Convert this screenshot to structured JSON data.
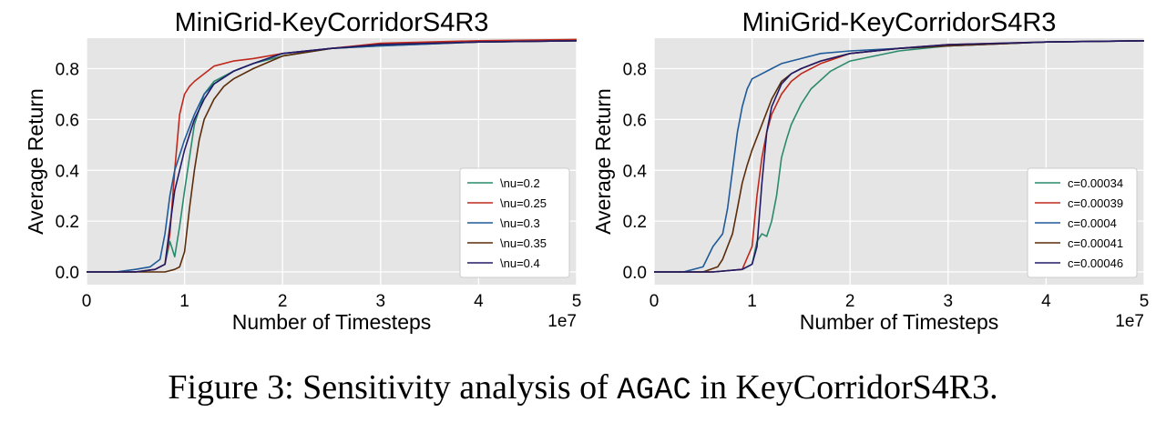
{
  "chart_data": [
    {
      "type": "line",
      "title": "MiniGrid-KeyCorridorS4R3",
      "xlabel": "Number of Timesteps",
      "ylabel": "Average Return",
      "x_multiplier_label": "1e7",
      "xlim": [
        0,
        5
      ],
      "ylim": [
        -0.05,
        0.92
      ],
      "xticks": [
        0,
        1,
        2,
        3,
        4,
        5
      ],
      "yticks": [
        0.0,
        0.2,
        0.4,
        0.6,
        0.8
      ],
      "ytick_labels": [
        "0.0",
        "0.2",
        "0.4",
        "0.6",
        "0.8"
      ],
      "grid": true,
      "legend_position": "lower-right",
      "series": [
        {
          "name": "\\nu=0.2",
          "color": "#2a8a6c",
          "x": [
            0,
            0.5,
            0.7,
            0.8,
            0.85,
            0.9,
            0.95,
            1.0,
            1.05,
            1.1,
            1.2,
            1.3,
            1.5,
            1.7,
            2.0,
            2.5,
            3.0,
            4.0,
            5.0
          ],
          "y": [
            0,
            0,
            0.01,
            0.03,
            0.12,
            0.06,
            0.18,
            0.32,
            0.45,
            0.58,
            0.7,
            0.75,
            0.79,
            0.82,
            0.85,
            0.88,
            0.89,
            0.905,
            0.91
          ]
        },
        {
          "name": "\\nu=0.25",
          "color": "#c0281c",
          "x": [
            0,
            0.5,
            0.7,
            0.8,
            0.85,
            0.9,
            0.95,
            1.0,
            1.05,
            1.1,
            1.2,
            1.3,
            1.5,
            1.7,
            2.0,
            2.5,
            3.0,
            4.0,
            5.0
          ],
          "y": [
            0,
            0,
            0.01,
            0.03,
            0.15,
            0.4,
            0.62,
            0.7,
            0.73,
            0.75,
            0.78,
            0.81,
            0.83,
            0.84,
            0.86,
            0.88,
            0.9,
            0.91,
            0.915
          ]
        },
        {
          "name": "\\nu=0.3",
          "color": "#1f5a99",
          "x": [
            0,
            0.3,
            0.5,
            0.65,
            0.75,
            0.8,
            0.85,
            0.9,
            0.95,
            1.0,
            1.1,
            1.2,
            1.3,
            1.5,
            1.7,
            2.0,
            2.5,
            3.0,
            4.0,
            5.0
          ],
          "y": [
            0,
            0,
            0.01,
            0.02,
            0.05,
            0.15,
            0.3,
            0.4,
            0.46,
            0.52,
            0.62,
            0.7,
            0.74,
            0.79,
            0.82,
            0.86,
            0.88,
            0.89,
            0.905,
            0.91
          ]
        },
        {
          "name": "\\nu=0.35",
          "color": "#5b2c0a",
          "x": [
            0,
            0.5,
            0.8,
            0.9,
            0.95,
            1.0,
            1.05,
            1.1,
            1.15,
            1.2,
            1.3,
            1.4,
            1.5,
            1.7,
            2.0,
            2.5,
            3.0,
            4.0,
            5.0
          ],
          "y": [
            0,
            0,
            0,
            0.01,
            0.02,
            0.08,
            0.25,
            0.4,
            0.52,
            0.6,
            0.68,
            0.73,
            0.76,
            0.8,
            0.85,
            0.88,
            0.895,
            0.905,
            0.91
          ]
        },
        {
          "name": "\\nu=0.4",
          "color": "#221a66",
          "x": [
            0,
            0.5,
            0.7,
            0.8,
            0.85,
            0.9,
            0.95,
            1.0,
            1.1,
            1.2,
            1.3,
            1.5,
            1.7,
            2.0,
            2.5,
            3.0,
            4.0,
            5.0
          ],
          "y": [
            0,
            0,
            0.01,
            0.03,
            0.18,
            0.32,
            0.4,
            0.48,
            0.6,
            0.68,
            0.74,
            0.79,
            0.82,
            0.86,
            0.88,
            0.895,
            0.905,
            0.91
          ]
        }
      ]
    },
    {
      "type": "line",
      "title": "MiniGrid-KeyCorridorS4R3",
      "xlabel": "Number of Timesteps",
      "ylabel": "Average Return",
      "x_multiplier_label": "1e7",
      "xlim": [
        0,
        5
      ],
      "ylim": [
        -0.05,
        0.92
      ],
      "xticks": [
        0,
        1,
        2,
        3,
        4,
        5
      ],
      "yticks": [
        0.0,
        0.2,
        0.4,
        0.6,
        0.8
      ],
      "ytick_labels": [
        "0.0",
        "0.2",
        "0.4",
        "0.6",
        "0.8"
      ],
      "grid": true,
      "legend_position": "lower-right",
      "series": [
        {
          "name": "c=0.00034",
          "color": "#2a8a6c",
          "x": [
            0,
            0.6,
            0.9,
            1.0,
            1.05,
            1.1,
            1.15,
            1.2,
            1.25,
            1.3,
            1.35,
            1.4,
            1.5,
            1.6,
            1.8,
            2.0,
            2.5,
            3.0,
            4.0,
            5.0
          ],
          "y": [
            0,
            0,
            0.01,
            0.03,
            0.12,
            0.15,
            0.14,
            0.2,
            0.3,
            0.45,
            0.52,
            0.58,
            0.66,
            0.72,
            0.79,
            0.83,
            0.87,
            0.89,
            0.905,
            0.91
          ]
        },
        {
          "name": "c=0.00039",
          "color": "#c0281c",
          "x": [
            0,
            0.6,
            0.9,
            1.0,
            1.05,
            1.1,
            1.15,
            1.2,
            1.3,
            1.4,
            1.5,
            1.7,
            2.0,
            2.5,
            3.0,
            4.0,
            5.0
          ],
          "y": [
            0,
            0,
            0.01,
            0.1,
            0.3,
            0.45,
            0.55,
            0.62,
            0.7,
            0.75,
            0.78,
            0.82,
            0.86,
            0.88,
            0.895,
            0.905,
            0.91
          ]
        },
        {
          "name": "c=0.0004",
          "color": "#1f5a99",
          "x": [
            0,
            0.3,
            0.5,
            0.6,
            0.7,
            0.75,
            0.8,
            0.85,
            0.9,
            0.95,
            1.0,
            1.1,
            1.2,
            1.3,
            1.5,
            1.7,
            2.0,
            2.5,
            3.0,
            4.0,
            5.0
          ],
          "y": [
            0,
            0,
            0.02,
            0.1,
            0.15,
            0.25,
            0.4,
            0.55,
            0.65,
            0.72,
            0.76,
            0.78,
            0.8,
            0.82,
            0.84,
            0.86,
            0.87,
            0.88,
            0.89,
            0.905,
            0.91
          ]
        },
        {
          "name": "c=0.00041",
          "color": "#5b2c0a",
          "x": [
            0,
            0.5,
            0.65,
            0.7,
            0.8,
            0.85,
            0.9,
            0.95,
            1.0,
            1.1,
            1.2,
            1.3,
            1.4,
            1.5,
            1.7,
            2.0,
            2.5,
            3.0,
            4.0,
            5.0
          ],
          "y": [
            0,
            0,
            0.02,
            0.05,
            0.15,
            0.25,
            0.35,
            0.42,
            0.48,
            0.58,
            0.68,
            0.75,
            0.78,
            0.8,
            0.83,
            0.86,
            0.88,
            0.89,
            0.905,
            0.91
          ]
        },
        {
          "name": "c=0.00046",
          "color": "#221a66",
          "x": [
            0,
            0.6,
            0.9,
            1.0,
            1.05,
            1.1,
            1.15,
            1.2,
            1.3,
            1.4,
            1.5,
            1.7,
            2.0,
            2.5,
            3.0,
            4.0,
            5.0
          ],
          "y": [
            0,
            0,
            0.01,
            0.03,
            0.1,
            0.35,
            0.55,
            0.65,
            0.74,
            0.78,
            0.8,
            0.83,
            0.86,
            0.88,
            0.895,
            0.905,
            0.91
          ]
        }
      ]
    }
  ],
  "caption": {
    "prefix": "Figure 3: Sensitivity analysis of ",
    "method": "AGAC",
    "suffix": " in KeyCorridorS4R3."
  }
}
